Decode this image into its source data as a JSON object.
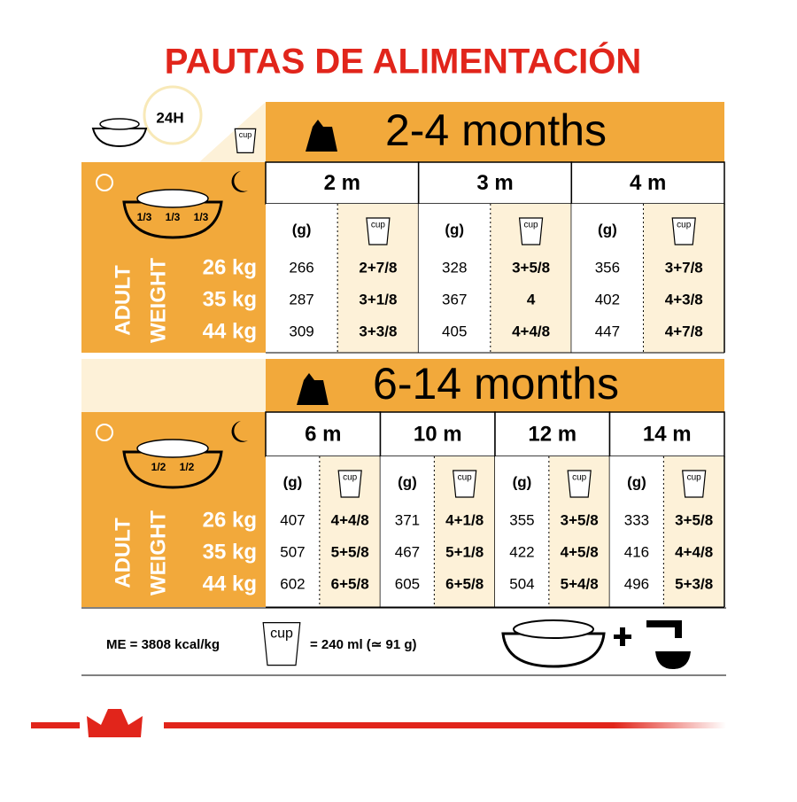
{
  "title": "PAUTAS DE ALIMENTACIÓN",
  "daily_label": "24H",
  "cup_label": "cup",
  "gram_label": "(g)",
  "weight_axis": {
    "line1": "ADULT",
    "line2": "WEIGHT"
  },
  "sections": [
    {
      "title": "2-4 months",
      "fractions": [
        "1/3",
        "1/3",
        "1/3"
      ],
      "weights": [
        "26 kg",
        "35 kg",
        "44 kg"
      ],
      "columns": [
        {
          "age": "2 m",
          "grams": [
            266,
            287,
            309
          ],
          "cups": [
            "2+7/8",
            "3+1/8",
            "3+3/8"
          ]
        },
        {
          "age": "3 m",
          "grams": [
            328,
            367,
            405
          ],
          "cups": [
            "3+5/8",
            "4",
            "4+4/8"
          ]
        },
        {
          "age": "4 m",
          "grams": [
            356,
            402,
            447
          ],
          "cups": [
            "3+7/8",
            "4+3/8",
            "4+7/8"
          ]
        }
      ]
    },
    {
      "title": "6-14 months",
      "fractions": [
        "1/2",
        "1/2"
      ],
      "weights": [
        "26 kg",
        "35 kg",
        "44 kg"
      ],
      "columns": [
        {
          "age": "6 m",
          "grams": [
            407,
            507,
            602
          ],
          "cups": [
            "4+4/8",
            "5+5/8",
            "6+5/8"
          ]
        },
        {
          "age": "10 m",
          "grams": [
            371,
            467,
            605
          ],
          "cups": [
            "4+1/8",
            "5+1/8",
            "6+5/8"
          ]
        },
        {
          "age": "12 m",
          "grams": [
            355,
            422,
            504
          ],
          "cups": [
            "3+5/8",
            "4+5/8",
            "5+4/8"
          ]
        },
        {
          "age": "14 m",
          "grams": [
            333,
            416,
            496
          ],
          "cups": [
            "3+5/8",
            "4+4/8",
            "5+3/8"
          ]
        }
      ]
    }
  ],
  "footer": {
    "energy": "ME = 3808 kcal/kg",
    "cup_equiv": "= 240 ml (≃ 91 g)"
  }
}
